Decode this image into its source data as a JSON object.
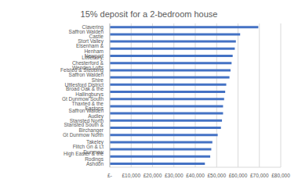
{
  "chart_data": {
    "type": "bar",
    "title": "15% deposit for a 2-bedroom house",
    "orientation": "horizontal",
    "categories": [
      "Clavering",
      "Saffron Walden Castle",
      "Stort Valley",
      "Elsenham & Henham",
      "Newport",
      "Littlebury, Chesterford & Wenden Lofts",
      "Felsted & Stebbing",
      "Saffron Walden Shire",
      "Uttlesford District",
      "Broad Oak & the Hallingburys",
      "Gt Dunmow South",
      "Thaxted & the Eastons",
      "Saffron Walden Audley",
      "Stansted North",
      "Stansted South & Birchanger",
      "Gt Dunmow North",
      "Takeley",
      "Flitch Gn & Lt Dunmow",
      "High Easter & the Rodings",
      "Ashdon"
    ],
    "values": [
      69500,
      61000,
      59000,
      58500,
      57500,
      57000,
      56500,
      56000,
      54500,
      54000,
      53500,
      53000,
      53000,
      52500,
      52000,
      50500,
      48000,
      47500,
      47000,
      44500
    ],
    "color": "#4472c4",
    "xlim": [
      0,
      80000
    ],
    "xticks": [
      {
        "value": 0,
        "label": "£-"
      },
      {
        "value": 10000,
        "label": "£10,000"
      },
      {
        "value": 20000,
        "label": "£20,000"
      },
      {
        "value": 30000,
        "label": "£30,000"
      },
      {
        "value": 40000,
        "label": "£40,000"
      },
      {
        "value": 50000,
        "label": "£50,000"
      },
      {
        "value": 60000,
        "label": "£60,000"
      },
      {
        "value": 70000,
        "label": "£70,000"
      },
      {
        "value": 80000,
        "label": "£80,000"
      }
    ],
    "grid": true
  }
}
